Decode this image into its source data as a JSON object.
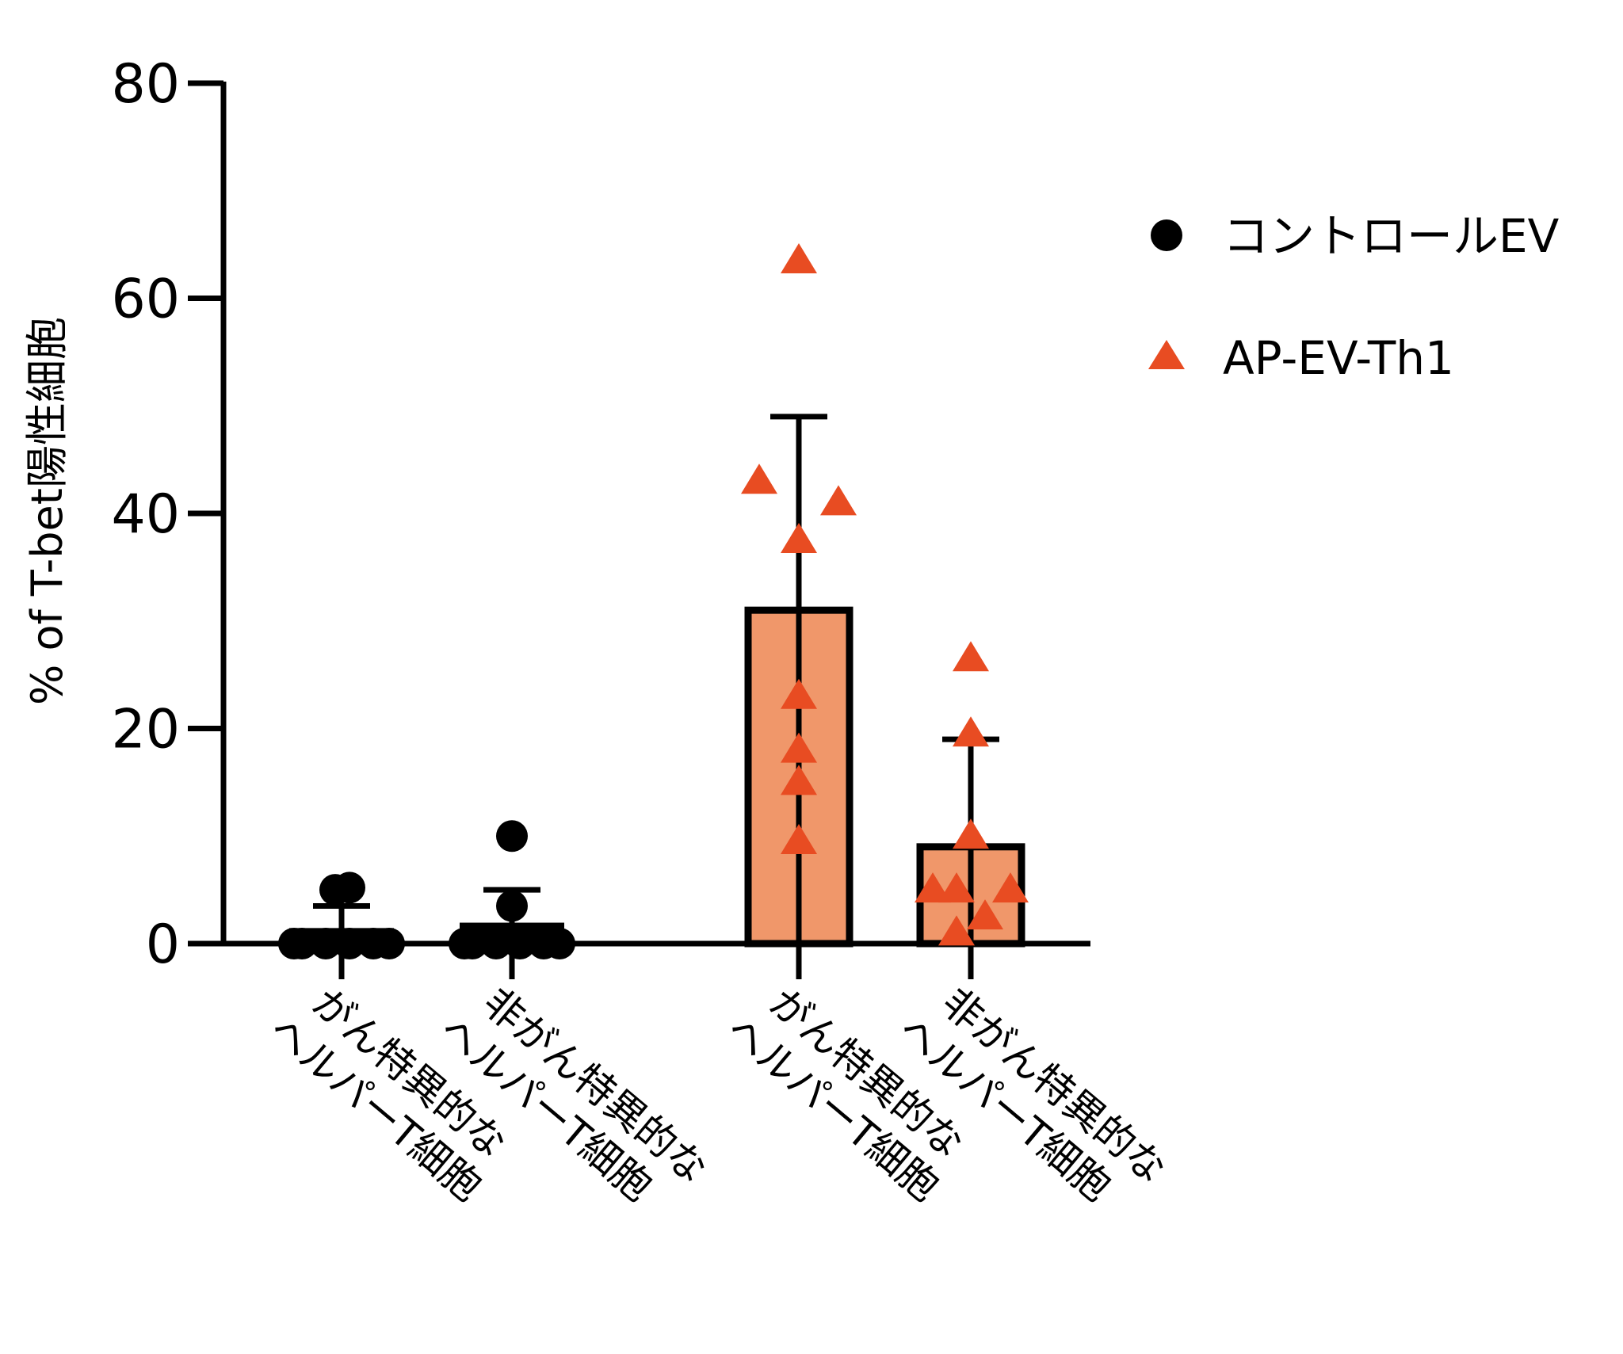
{
  "chart_data": {
    "type": "bar",
    "title": "",
    "ylabel": "% of T-bet陽性細胞",
    "xlabel": "",
    "ylim": [
      0,
      80
    ],
    "yticks": [
      "0",
      "20",
      "40",
      "60",
      "80"
    ],
    "grid": false,
    "legend_position": "right",
    "categories": [
      {
        "line1": "がん特異的な",
        "line2": "ヘルパーT細胞"
      },
      {
        "line1": "非がん特異的な",
        "line2": "ヘルパーT細胞"
      },
      {
        "line1": "がん特異的な",
        "line2": "ヘルパーT細胞"
      },
      {
        "line1": "非がん特異的な",
        "line2": "ヘルパーT細胞"
      }
    ],
    "series": [
      {
        "name": "コントロールEV",
        "marker": "circle",
        "color": "#000000",
        "bar_fill": "#000000",
        "groups": [
          0,
          1
        ],
        "means": [
          1.3,
          1.8
        ],
        "sd": [
          2.2,
          3.2
        ],
        "points": [
          [
            5,
            5.2,
            0,
            0,
            0,
            0,
            0,
            0
          ],
          [
            10,
            3.5,
            0,
            0,
            0,
            0,
            0,
            0
          ]
        ]
      },
      {
        "name": "AP-EV-Th1",
        "marker": "triangle",
        "color": "#E84C22",
        "bar_fill": "#F0976A",
        "groups": [
          2,
          3
        ],
        "means": [
          31,
          9
        ],
        "sd": [
          18,
          10
        ],
        "points": [
          [
            63.5,
            43,
            41,
            37.5,
            23,
            18,
            15,
            9.5
          ],
          [
            26.5,
            19.5,
            10,
            5,
            5,
            5,
            2.5,
            1
          ]
        ]
      }
    ]
  }
}
